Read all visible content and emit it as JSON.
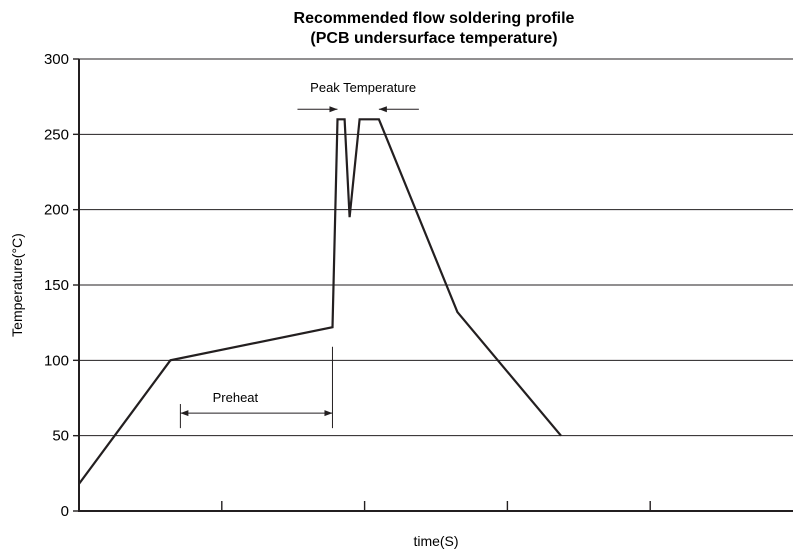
{
  "chart_data": {
    "type": "line",
    "title": "Recommended flow soldering profile",
    "subtitle": "(PCB undersurface temperature)",
    "xlabel": "time(S)",
    "ylabel": "Temperature(°C)",
    "ylim": [
      0,
      300
    ],
    "yticks": [
      "0",
      "50",
      "100",
      "150",
      "200",
      "250",
      "300"
    ],
    "xlim": [
      0,
      100
    ],
    "xticks": [
      20,
      40,
      60,
      80
    ],
    "grid": "horizontal",
    "series": [
      {
        "x": [
          0,
          12.8,
          35.5,
          36.2,
          37.2,
          37.9,
          39.3,
          39.9,
          42.0,
          53.0,
          67.5
        ],
        "y": [
          18,
          100,
          122,
          260,
          260,
          195,
          260,
          260,
          260,
          132,
          50
        ]
      }
    ],
    "annotations": [
      {
        "text": "Peak Temperature",
        "x": [
          36.2,
          42.0
        ],
        "y": 268
      },
      {
        "text": "Preheat",
        "x": [
          14.2,
          35.5
        ],
        "y": 65
      }
    ]
  }
}
